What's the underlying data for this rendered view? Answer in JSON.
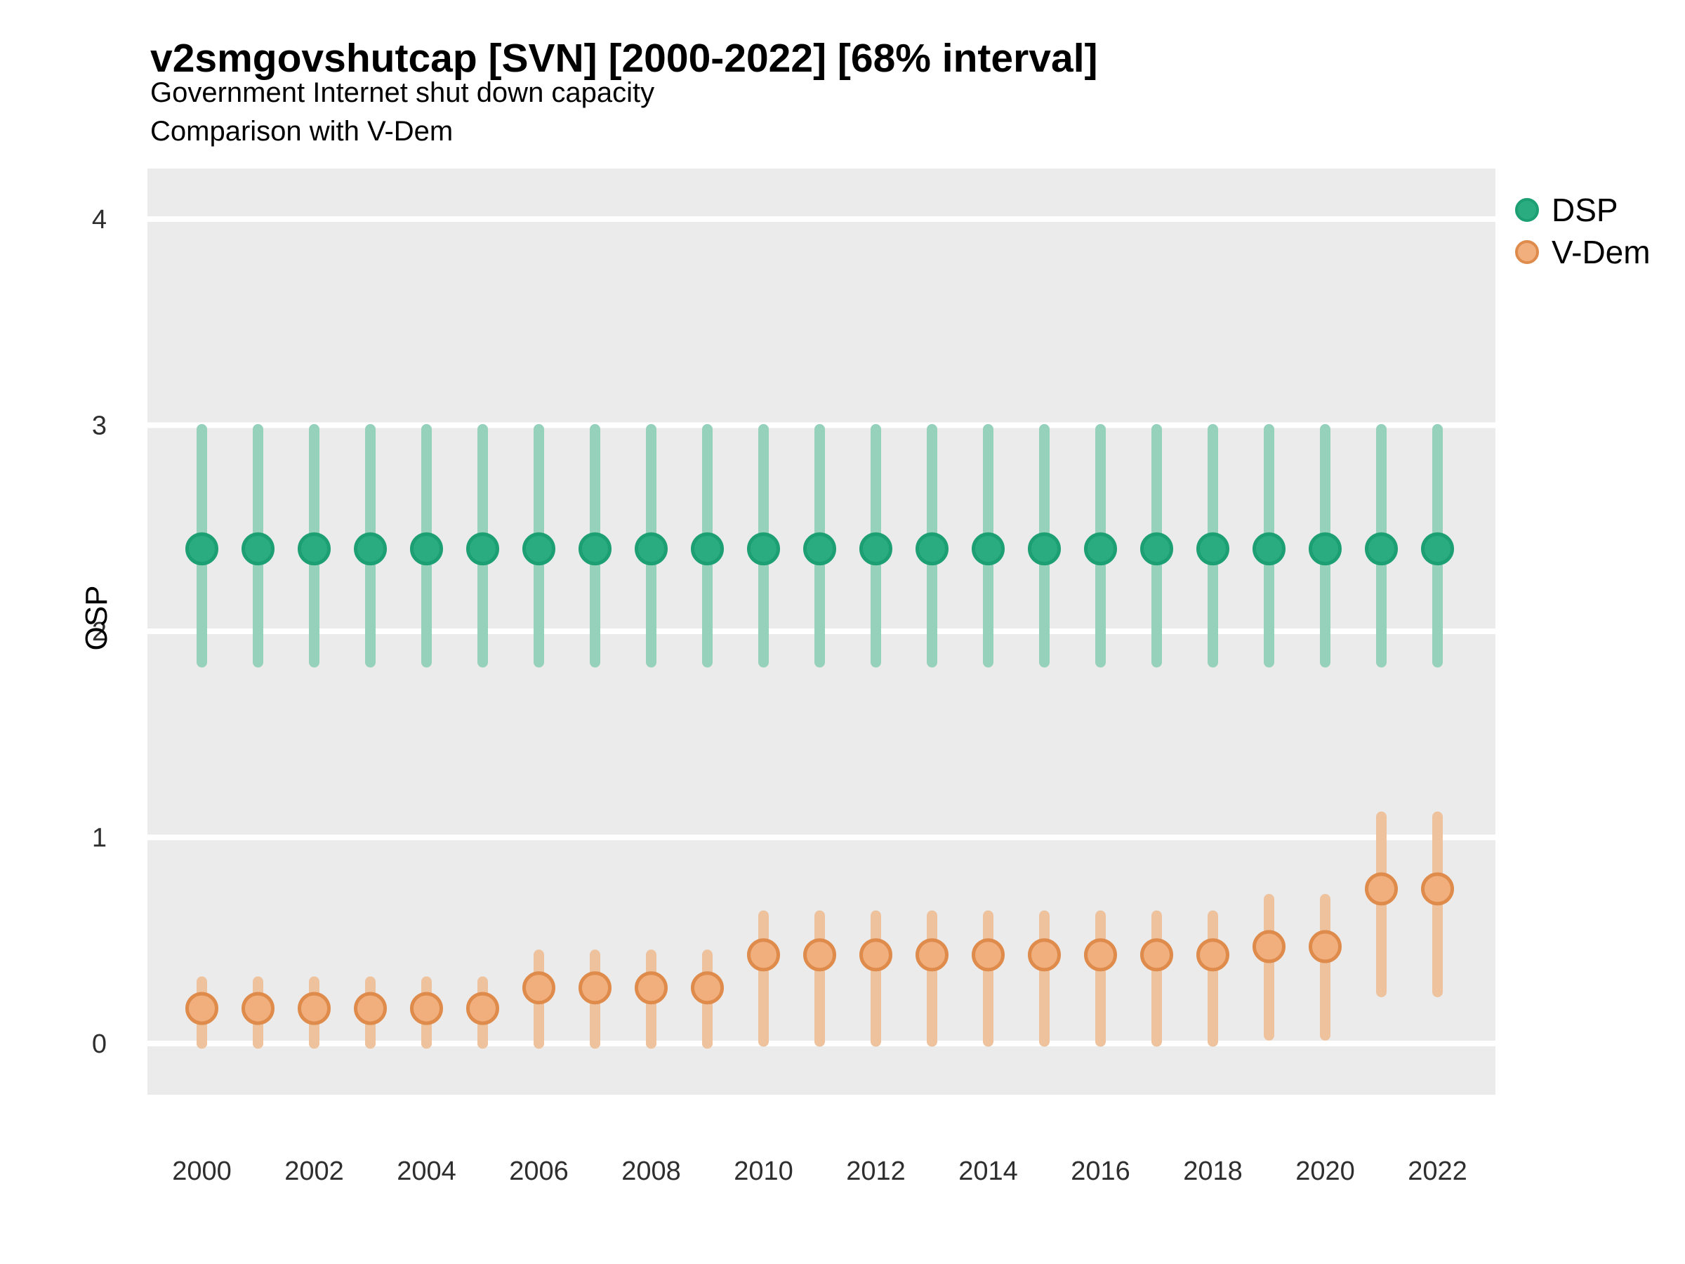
{
  "chart_data": {
    "type": "pointrange",
    "title": "v2smgovshutcap [SVN] [2000-2022] [68% interval]",
    "subtitle": "Government Internet shut down capacity",
    "subtitle2": "Comparison with V-Dem",
    "interval_label": "68% interval",
    "country_code": "SVN",
    "xlabel": "",
    "ylabel": "OSP",
    "x_ticks": [
      2000,
      2002,
      2004,
      2006,
      2008,
      2010,
      2012,
      2014,
      2016,
      2018,
      2020,
      2022
    ],
    "y_ticks": [
      0,
      1,
      2,
      3,
      4
    ],
    "xlim": [
      1999,
      2023
    ],
    "ylim": [
      -0.25,
      4.25
    ],
    "grid": "horizontal major gridlines only, white on gray panel",
    "legend": {
      "position": "right",
      "entries": [
        "DSP",
        "V-Dem"
      ]
    },
    "years": [
      2000,
      2001,
      2002,
      2003,
      2004,
      2005,
      2006,
      2007,
      2008,
      2009,
      2010,
      2011,
      2012,
      2013,
      2014,
      2015,
      2016,
      2017,
      2018,
      2019,
      2020,
      2021,
      2022
    ],
    "series": [
      {
        "name": "DSP",
        "point_fill": "#2aab80",
        "point_stroke": "#1d9f74",
        "interval_color": "#96d1bb",
        "points": [
          {
            "year": 2000,
            "est": 2.4,
            "lo": 1.85,
            "hi": 2.98
          },
          {
            "year": 2001,
            "est": 2.4,
            "lo": 1.85,
            "hi": 2.98
          },
          {
            "year": 2002,
            "est": 2.4,
            "lo": 1.85,
            "hi": 2.98
          },
          {
            "year": 2003,
            "est": 2.4,
            "lo": 1.85,
            "hi": 2.98
          },
          {
            "year": 2004,
            "est": 2.4,
            "lo": 1.85,
            "hi": 2.98
          },
          {
            "year": 2005,
            "est": 2.4,
            "lo": 1.85,
            "hi": 2.98
          },
          {
            "year": 2006,
            "est": 2.4,
            "lo": 1.85,
            "hi": 2.98
          },
          {
            "year": 2007,
            "est": 2.4,
            "lo": 1.85,
            "hi": 2.98
          },
          {
            "year": 2008,
            "est": 2.4,
            "lo": 1.85,
            "hi": 2.98
          },
          {
            "year": 2009,
            "est": 2.4,
            "lo": 1.85,
            "hi": 2.98
          },
          {
            "year": 2010,
            "est": 2.4,
            "lo": 1.85,
            "hi": 2.98
          },
          {
            "year": 2011,
            "est": 2.4,
            "lo": 1.85,
            "hi": 2.98
          },
          {
            "year": 2012,
            "est": 2.4,
            "lo": 1.85,
            "hi": 2.98
          },
          {
            "year": 2013,
            "est": 2.4,
            "lo": 1.85,
            "hi": 2.98
          },
          {
            "year": 2014,
            "est": 2.4,
            "lo": 1.85,
            "hi": 2.98
          },
          {
            "year": 2015,
            "est": 2.4,
            "lo": 1.85,
            "hi": 2.98
          },
          {
            "year": 2016,
            "est": 2.4,
            "lo": 1.85,
            "hi": 2.98
          },
          {
            "year": 2017,
            "est": 2.4,
            "lo": 1.85,
            "hi": 2.98
          },
          {
            "year": 2018,
            "est": 2.4,
            "lo": 1.85,
            "hi": 2.98
          },
          {
            "year": 2019,
            "est": 2.4,
            "lo": 1.85,
            "hi": 2.98
          },
          {
            "year": 2020,
            "est": 2.4,
            "lo": 1.85,
            "hi": 2.98
          },
          {
            "year": 2021,
            "est": 2.4,
            "lo": 1.85,
            "hi": 2.98
          },
          {
            "year": 2022,
            "est": 2.4,
            "lo": 1.85,
            "hi": 2.98
          }
        ]
      },
      {
        "name": "V-Dem",
        "point_fill": "#f1af7e",
        "point_stroke": "#de8b4c",
        "interval_color": "#edc29d",
        "points": [
          {
            "year": 2000,
            "est": 0.17,
            "lo": 0.0,
            "hi": 0.3
          },
          {
            "year": 2001,
            "est": 0.17,
            "lo": 0.0,
            "hi": 0.3
          },
          {
            "year": 2002,
            "est": 0.17,
            "lo": 0.0,
            "hi": 0.3
          },
          {
            "year": 2003,
            "est": 0.17,
            "lo": 0.0,
            "hi": 0.3
          },
          {
            "year": 2004,
            "est": 0.17,
            "lo": 0.0,
            "hi": 0.3
          },
          {
            "year": 2005,
            "est": 0.17,
            "lo": 0.0,
            "hi": 0.3
          },
          {
            "year": 2006,
            "est": 0.27,
            "lo": 0.0,
            "hi": 0.43
          },
          {
            "year": 2007,
            "est": 0.27,
            "lo": 0.0,
            "hi": 0.43
          },
          {
            "year": 2008,
            "est": 0.27,
            "lo": 0.0,
            "hi": 0.43
          },
          {
            "year": 2009,
            "est": 0.27,
            "lo": 0.0,
            "hi": 0.43
          },
          {
            "year": 2010,
            "est": 0.43,
            "lo": 0.01,
            "hi": 0.62
          },
          {
            "year": 2011,
            "est": 0.43,
            "lo": 0.01,
            "hi": 0.62
          },
          {
            "year": 2012,
            "est": 0.43,
            "lo": 0.01,
            "hi": 0.62
          },
          {
            "year": 2013,
            "est": 0.43,
            "lo": 0.01,
            "hi": 0.62
          },
          {
            "year": 2014,
            "est": 0.43,
            "lo": 0.01,
            "hi": 0.62
          },
          {
            "year": 2015,
            "est": 0.43,
            "lo": 0.01,
            "hi": 0.62
          },
          {
            "year": 2016,
            "est": 0.43,
            "lo": 0.01,
            "hi": 0.62
          },
          {
            "year": 2017,
            "est": 0.43,
            "lo": 0.01,
            "hi": 0.62
          },
          {
            "year": 2018,
            "est": 0.43,
            "lo": 0.01,
            "hi": 0.62
          },
          {
            "year": 2019,
            "est": 0.47,
            "lo": 0.04,
            "hi": 0.7
          },
          {
            "year": 2020,
            "est": 0.47,
            "lo": 0.04,
            "hi": 0.7
          },
          {
            "year": 2021,
            "est": 0.75,
            "lo": 0.25,
            "hi": 1.1
          },
          {
            "year": 2022,
            "est": 0.75,
            "lo": 0.25,
            "hi": 1.1
          }
        ]
      }
    ]
  },
  "colors": {
    "background": "#ffffff",
    "panel_bg": "#ebebeb",
    "gridline": "#ffffff",
    "title_text": "#000000",
    "tick_text": "#2e2e2e"
  }
}
